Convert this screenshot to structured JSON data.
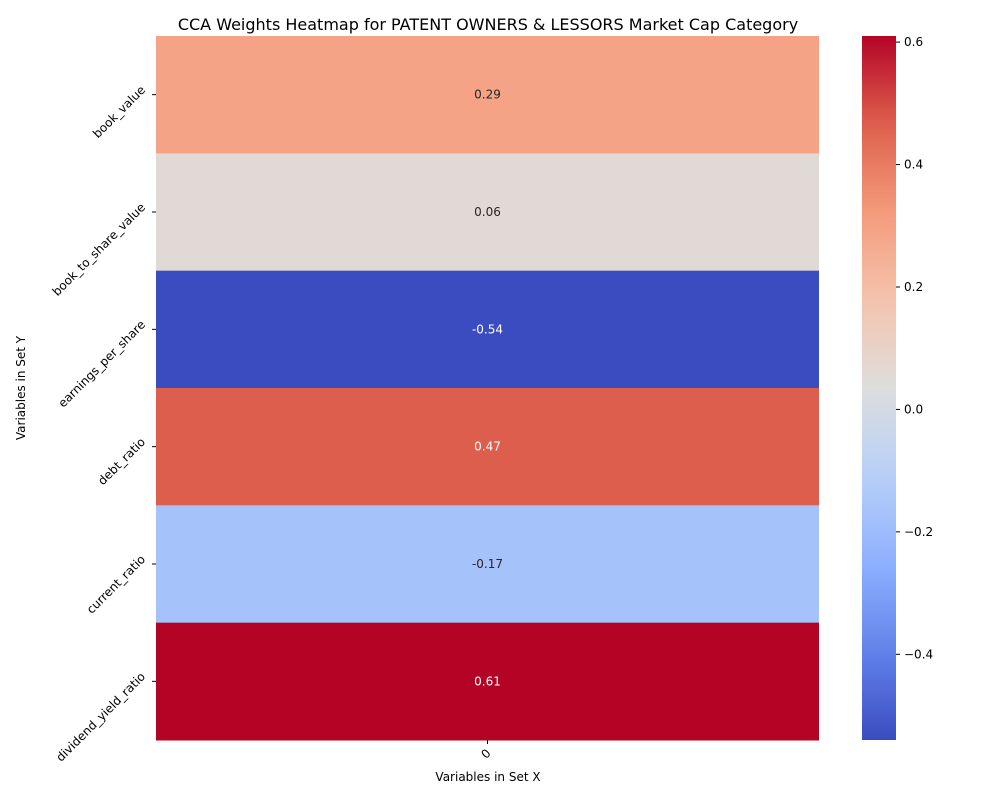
{
  "chart_data": {
    "type": "heatmap",
    "title": "CCA Weights Heatmap for PATENT OWNERS & LESSORS Market Cap Category",
    "xlabel": "Variables in Set X",
    "ylabel": "Variables in Set Y",
    "x_categories": [
      "0"
    ],
    "y_categories": [
      "book_value",
      "book_to_share_value",
      "earnings_per_share",
      "debt_ratio",
      "current_ratio",
      "dividend_yield_ratio"
    ],
    "values": [
      [
        0.29
      ],
      [
        0.06
      ],
      [
        -0.54
      ],
      [
        0.47
      ],
      [
        -0.17
      ],
      [
        0.61
      ]
    ],
    "value_labels": [
      "0.29",
      "0.06",
      "-0.54",
      "0.47",
      "-0.17",
      "0.61"
    ],
    "colormap": "coolwarm",
    "colorbar": {
      "min": -0.54,
      "max": 0.61,
      "ticks": [
        -0.4,
        -0.2,
        0.0,
        0.2,
        0.4,
        0.6
      ],
      "tick_labels": [
        "−0.4",
        "−0.2",
        "0.0",
        "0.2",
        "0.4",
        "0.6"
      ]
    }
  }
}
